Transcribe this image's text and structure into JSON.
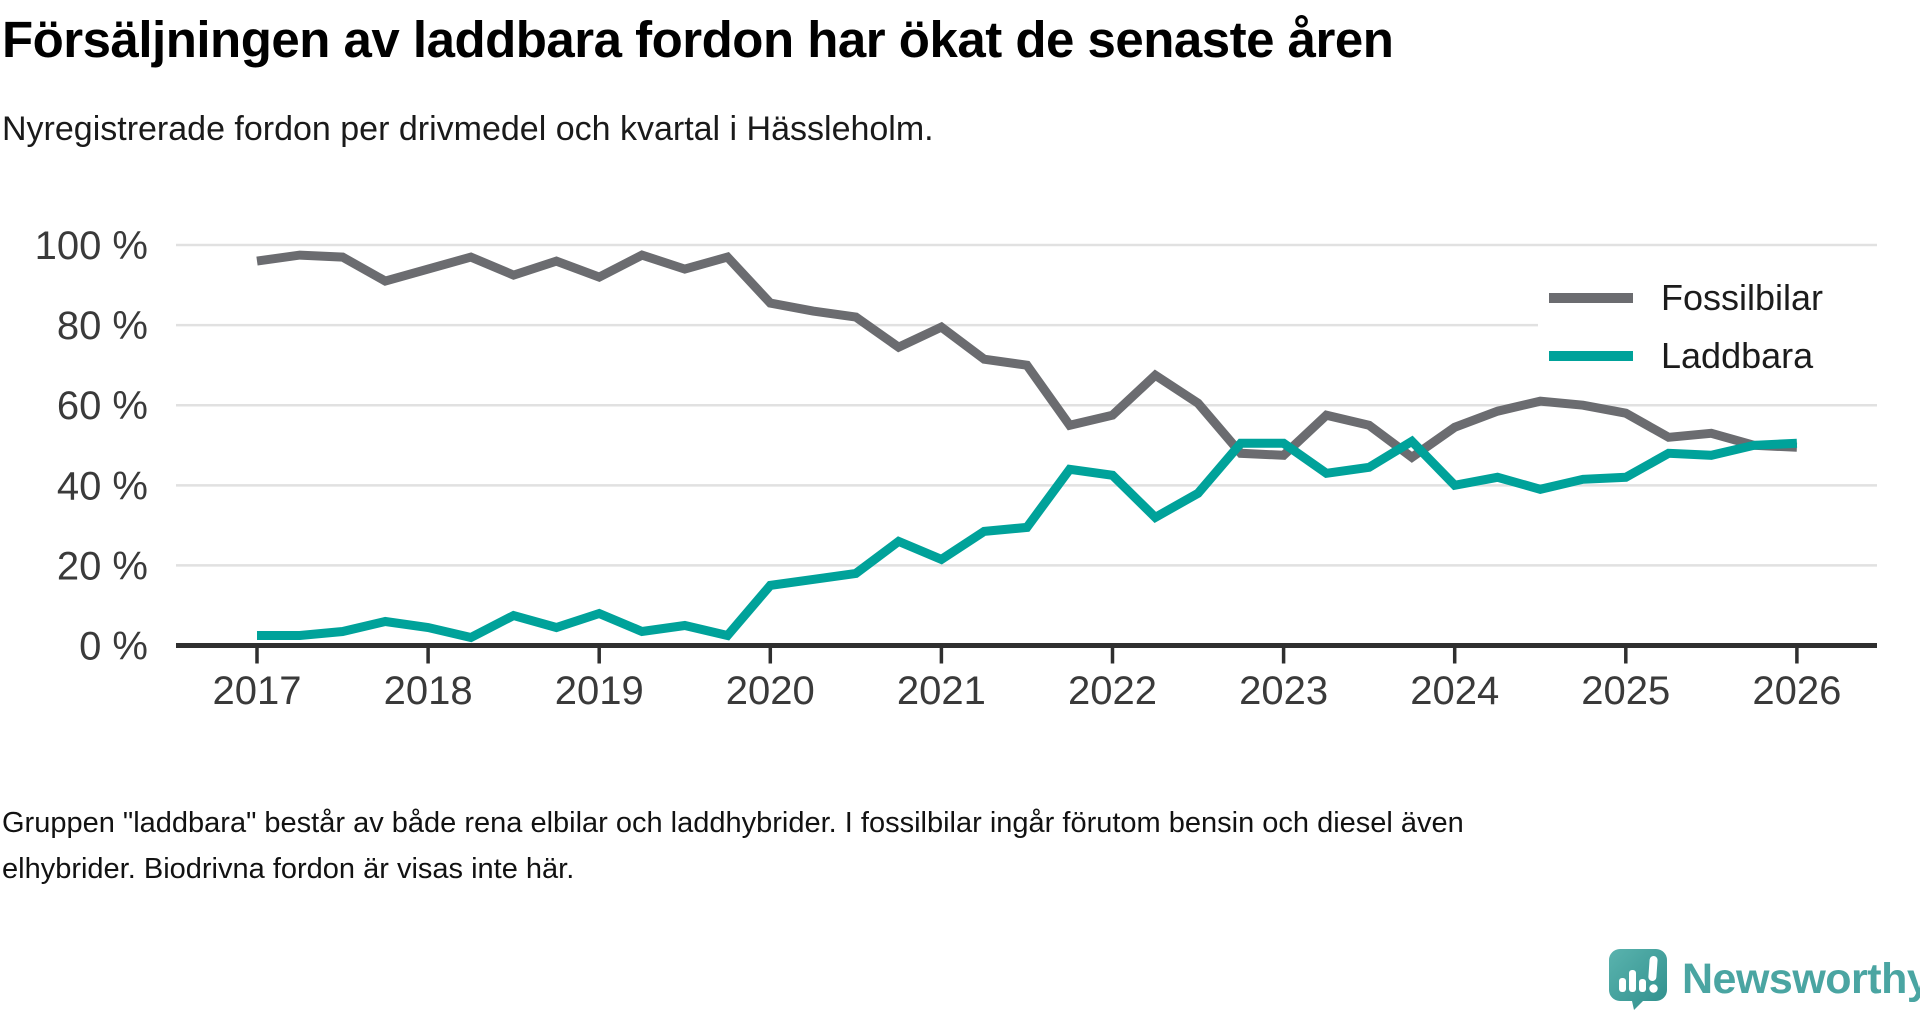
{
  "header": {
    "title": "Försäljningen av laddbara fordon har ökat de senaste åren",
    "subtitle": "Nyregistrerade fordon per drivmedel och kvartal i Hässleholm."
  },
  "chart_data": {
    "type": "line",
    "title": "Försäljningen av laddbara fordon har ökat de senaste åren",
    "subtitle": "Nyregistrerade fordon per drivmedel och kvartal i Hässleholm.",
    "x_unit": "quarter",
    "x_start": "2017 Q1",
    "x_end": "2026 Q1",
    "x_tick_labels": [
      "2017",
      "2018",
      "2019",
      "2020",
      "2021",
      "2022",
      "2023",
      "2024",
      "2025",
      "2026"
    ],
    "y_ticks": [
      0,
      20,
      40,
      60,
      80,
      100
    ],
    "y_tick_labels": [
      "0 %",
      "20 %",
      "40 %",
      "60 %",
      "80 %",
      "100 %"
    ],
    "ylim": [
      0,
      100
    ],
    "unit": "%",
    "grid": "horizontal",
    "legend_position": "top-right",
    "gridline_color": "#e1e1e1",
    "axis_color": "#2f2f2f",
    "tick_label_color": "#3a3a3a",
    "series": [
      {
        "name": "Fossilbilar",
        "color": "#6b6c70",
        "values": [
          96,
          97.5,
          97,
          91,
          94,
          97,
          92.5,
          96,
          92,
          97.5,
          94,
          97,
          85.5,
          83.5,
          82,
          74.5,
          79.5,
          71.5,
          70,
          55,
          57.5,
          67.5,
          60.5,
          48,
          47.5,
          57.5,
          55,
          47,
          54.5,
          58.5,
          61,
          60,
          58,
          52,
          53,
          50,
          49.5
        ]
      },
      {
        "name": "Laddbara",
        "color": "#00a29a",
        "values": [
          2.5,
          2.5,
          3.5,
          6,
          4.5,
          2,
          7.5,
          4.5,
          8,
          3.5,
          5,
          2.5,
          15,
          16.5,
          18,
          26,
          21.5,
          28.5,
          29.5,
          44,
          42.5,
          32,
          38,
          50.5,
          50.5,
          43,
          44.5,
          51,
          40,
          42,
          39,
          41.5,
          42,
          48,
          47.5,
          50,
          50.5
        ]
      }
    ]
  },
  "footer": {
    "note": "Gruppen \"laddbara\" består av både rena elbilar och laddhybrider. I fossilbilar ingår förutom bensin och diesel även elhybrider. Biodrivna fordon är visas inte här."
  },
  "logo": {
    "text": "Newsworthy",
    "color": "#4aa5a2",
    "icon": "newsworthy-speech-bubble-chart-icon"
  }
}
